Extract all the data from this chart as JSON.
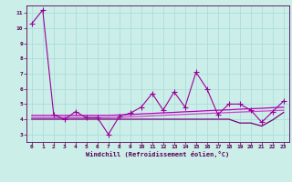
{
  "background_color": "#cceee8",
  "grid_color": "#aadddd",
  "xlabel": "Windchill (Refroidissement éolien,°C)",
  "xlim": [
    -0.5,
    23.5
  ],
  "ylim": [
    2.5,
    11.5
  ],
  "yticks": [
    3,
    4,
    5,
    6,
    7,
    8,
    9,
    10,
    11
  ],
  "xticks": [
    0,
    1,
    2,
    3,
    4,
    5,
    6,
    7,
    8,
    9,
    10,
    11,
    12,
    13,
    14,
    15,
    16,
    17,
    18,
    19,
    20,
    21,
    22,
    23
  ],
  "series": [
    {
      "x": [
        0,
        1,
        2,
        3,
        4,
        5,
        6,
        7,
        8,
        9,
        10,
        11,
        12,
        13,
        14,
        15,
        16,
        17,
        18,
        19,
        20,
        21,
        22,
        23
      ],
      "y": [
        10.3,
        11.2,
        4.3,
        4.0,
        4.5,
        4.1,
        4.1,
        3.0,
        4.2,
        4.4,
        4.8,
        5.7,
        4.6,
        5.8,
        4.8,
        7.1,
        6.0,
        4.3,
        5.0,
        5.0,
        4.6,
        3.8,
        4.5,
        5.2
      ],
      "color": "#990099",
      "marker": "+",
      "lw": 0.8,
      "ms": 4
    },
    {
      "x": [
        0,
        1,
        2,
        3,
        4,
        5,
        6,
        7,
        8,
        9,
        10,
        11,
        12,
        13,
        14,
        15,
        16,
        17,
        18,
        19,
        20,
        21,
        22,
        23
      ],
      "y": [
        4.25,
        4.25,
        4.25,
        4.25,
        4.25,
        4.25,
        4.25,
        4.25,
        4.28,
        4.31,
        4.35,
        4.38,
        4.42,
        4.45,
        4.49,
        4.52,
        4.56,
        4.59,
        4.62,
        4.66,
        4.69,
        4.72,
        4.76,
        4.79
      ],
      "color": "#bb00bb",
      "marker": null,
      "lw": 0.9,
      "ms": 0
    },
    {
      "x": [
        0,
        1,
        2,
        3,
        4,
        5,
        6,
        7,
        8,
        9,
        10,
        11,
        12,
        13,
        14,
        15,
        16,
        17,
        18,
        19,
        20,
        21,
        22,
        23
      ],
      "y": [
        4.1,
        4.1,
        4.1,
        4.1,
        4.1,
        4.1,
        4.1,
        4.1,
        4.13,
        4.16,
        4.19,
        4.22,
        4.26,
        4.29,
        4.32,
        4.35,
        4.38,
        4.41,
        4.44,
        4.47,
        4.5,
        4.53,
        4.56,
        4.59
      ],
      "color": "#cc44cc",
      "marker": null,
      "lw": 0.9,
      "ms": 0
    },
    {
      "x": [
        0,
        1,
        2,
        3,
        4,
        5,
        6,
        7,
        8,
        9,
        10,
        11,
        12,
        13,
        14,
        15,
        16,
        17,
        18,
        19,
        20,
        21,
        22,
        23
      ],
      "y": [
        4.0,
        4.0,
        4.0,
        4.0,
        4.0,
        4.0,
        4.0,
        4.0,
        4.0,
        4.0,
        4.0,
        4.0,
        4.0,
        4.0,
        4.0,
        4.0,
        4.0,
        4.0,
        4.0,
        3.75,
        3.75,
        3.55,
        3.95,
        4.45
      ],
      "color": "#770077",
      "marker": null,
      "lw": 0.9,
      "ms": 0
    }
  ]
}
